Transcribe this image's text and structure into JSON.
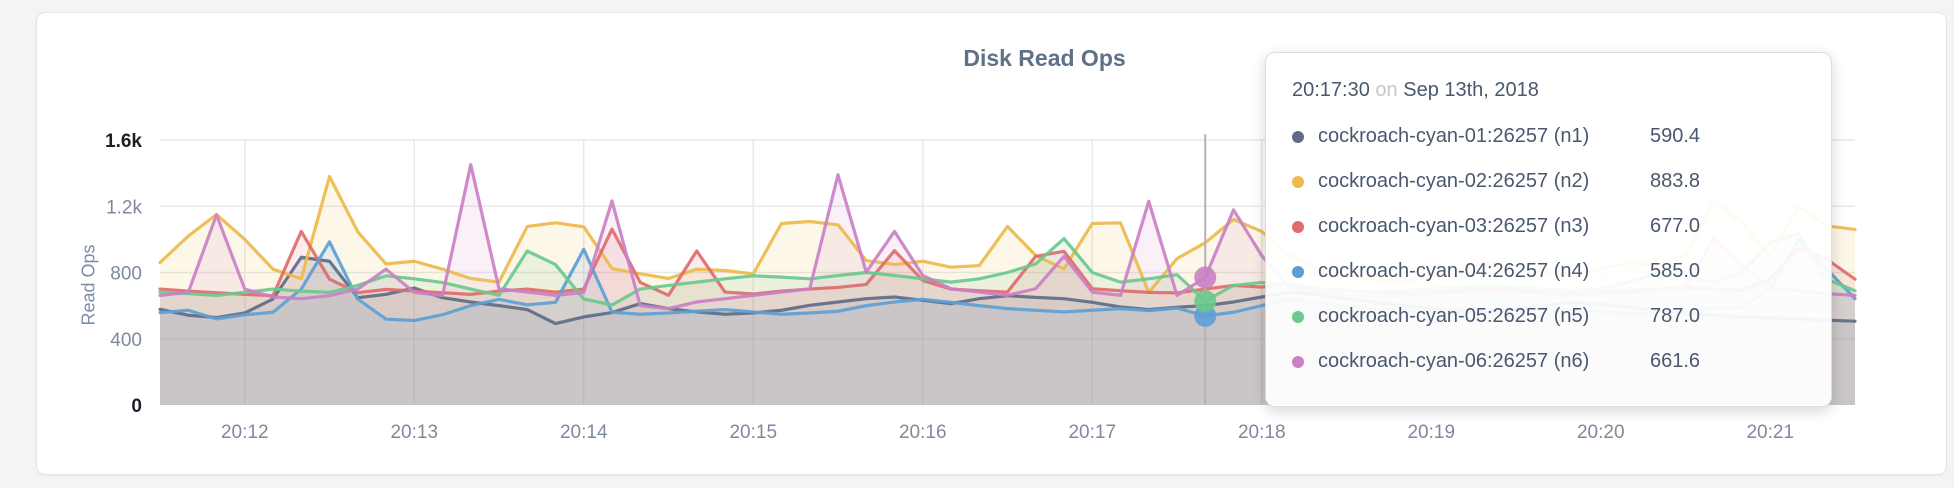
{
  "chart_data": {
    "type": "area",
    "title": "Disk Read Ops",
    "ylabel": "Read Ops",
    "grid": true,
    "legend_position": "tooltip",
    "x_start": "20:11:30",
    "x_end": "20:21:30",
    "x_step_seconds": 10,
    "x_ticks": [
      "20:12",
      "20:13",
      "20:14",
      "20:15",
      "20:16",
      "20:17",
      "20:18",
      "20:19",
      "20:20",
      "20:21"
    ],
    "y_ticks": [
      {
        "label": "0",
        "value": 0,
        "emph": true
      },
      {
        "label": "400",
        "value": 400,
        "emph": false
      },
      {
        "label": "800",
        "value": 800,
        "emph": false
      },
      {
        "label": "1.2k",
        "value": 1200,
        "emph": false
      },
      {
        "label": "1.6k",
        "value": 1600,
        "emph": true
      }
    ],
    "ylim": [
      0,
      1600
    ],
    "series": [
      {
        "id": "n1",
        "name": "cockroach-cyan-01:26257 (n1)",
        "color": "#5f6c87",
        "values": [
          578,
          542,
          528,
          556,
          640,
          892,
          868,
          648,
          668,
          706,
          648,
          622,
          600,
          576,
          492,
          532,
          558,
          612,
          582,
          562,
          548,
          556,
          572,
          602,
          622,
          642,
          652,
          632,
          612,
          642,
          660,
          650,
          642,
          620,
          592,
          576,
          590.4,
          600,
          622,
          652,
          680,
          668,
          640,
          620,
          600,
          582,
          572,
          566,
          580,
          600,
          618,
          608,
          590,
          572,
          556,
          542,
          532,
          526,
          520,
          512,
          506
        ]
      },
      {
        "id": "n2",
        "name": "cockroach-cyan-02:26257 (n2)",
        "color": "#edba4b",
        "values": [
          860,
          1020,
          1150,
          1000,
          820,
          762,
          1380,
          1046,
          852,
          868,
          820,
          764,
          742,
          1078,
          1100,
          1076,
          824,
          792,
          764,
          820,
          812,
          792,
          1096,
          1108,
          1088,
          872,
          848,
          868,
          832,
          842,
          1078,
          902,
          822,
          1096,
          1100,
          680,
          883.8,
          980,
          1120,
          1048,
          902,
          822,
          782,
          760,
          742,
          780,
          822,
          858,
          840,
          802,
          782,
          822,
          858,
          842,
          902,
          1238,
          1098,
          902,
          1198,
          1082,
          1060
        ]
      },
      {
        "id": "n3",
        "name": "cockroach-cyan-03:26257 (n3)",
        "color": "#e06b6d",
        "values": [
          700,
          688,
          678,
          668,
          660,
          1048,
          760,
          678,
          698,
          688,
          678,
          668,
          688,
          700,
          682,
          700,
          1062,
          740,
          662,
          930,
          682,
          670,
          688,
          700,
          710,
          728,
          932,
          752,
          700,
          690,
          682,
          898,
          928,
          702,
          690,
          680,
          677,
          700,
          722,
          712,
          730,
          700,
          690,
          680,
          672,
          680,
          690,
          700,
          692,
          682,
          672,
          682,
          690,
          700,
          710,
          700,
          692,
          760,
          950,
          880,
          760
        ]
      },
      {
        "id": "n4",
        "name": "cockroach-cyan-04:26257 (n4)",
        "color": "#5d9fd4",
        "values": [
          558,
          572,
          520,
          545,
          560,
          700,
          985,
          640,
          518,
          510,
          545,
          600,
          638,
          605,
          620,
          940,
          560,
          548,
          556,
          566,
          576,
          562,
          548,
          556,
          566,
          600,
          622,
          638,
          620,
          600,
          582,
          572,
          562,
          572,
          582,
          570,
          585,
          538,
          560,
          600,
          640,
          618,
          598,
          580,
          570,
          560,
          552,
          562,
          572,
          582,
          572,
          562,
          552,
          562,
          572,
          582,
          592,
          700,
          1000,
          820,
          642
        ]
      },
      {
        "id": "n5",
        "name": "cockroach-cyan-05:26257 (n5)",
        "color": "#6ac98c",
        "values": [
          682,
          672,
          662,
          680,
          700,
          688,
          680,
          722,
          780,
          762,
          740,
          700,
          662,
          930,
          848,
          640,
          604,
          700,
          722,
          742,
          762,
          780,
          772,
          762,
          782,
          800,
          782,
          762,
          742,
          762,
          800,
          852,
          1005,
          800,
          742,
          762,
          787,
          628,
          722,
          740,
          720,
          700,
          690,
          682,
          690,
          700,
          710,
          720,
          710,
          700,
          690,
          700,
          742,
          800,
          772,
          742,
          800,
          980,
          1035,
          760,
          690
        ]
      },
      {
        "id": "n6",
        "name": "cockroach-cyan-06:26257 (n6)",
        "color": "#ca80c5",
        "values": [
          662,
          680,
          1148,
          700,
          652,
          642,
          660,
          700,
          820,
          680,
          660,
          1452,
          702,
          682,
          662,
          680,
          1232,
          600,
          582,
          622,
          642,
          662,
          682,
          702,
          1390,
          802,
          1048,
          782,
          702,
          682,
          662,
          702,
          898,
          682,
          662,
          1230,
          661.6,
          770,
          1178,
          902,
          702,
          682,
          662,
          652,
          662,
          672,
          682,
          692,
          682,
          672,
          662,
          672,
          682,
          692,
          702,
          1008,
          842,
          702,
          690,
          672,
          662
        ]
      }
    ]
  },
  "hover": {
    "dot_series": [
      "n4",
      "n5",
      "n6"
    ]
  },
  "tooltip": {
    "time": "20:17:30",
    "preposition": "on",
    "date": "Sep 13th, 2018",
    "rows": [
      {
        "label": "cockroach-cyan-01:26257 (n1)",
        "value": "590.4",
        "color": "#5f6c87"
      },
      {
        "label": "cockroach-cyan-02:26257 (n2)",
        "value": "883.8",
        "color": "#edba4b"
      },
      {
        "label": "cockroach-cyan-03:26257 (n3)",
        "value": "677.0",
        "color": "#e06b6d"
      },
      {
        "label": "cockroach-cyan-04:26257 (n4)",
        "value": "585.0",
        "color": "#5d9fd4"
      },
      {
        "label": "cockroach-cyan-05:26257 (n5)",
        "value": "787.0",
        "color": "#6ac98c"
      },
      {
        "label": "cockroach-cyan-06:26257 (n6)",
        "value": "661.6",
        "color": "#ca80c5"
      }
    ]
  }
}
